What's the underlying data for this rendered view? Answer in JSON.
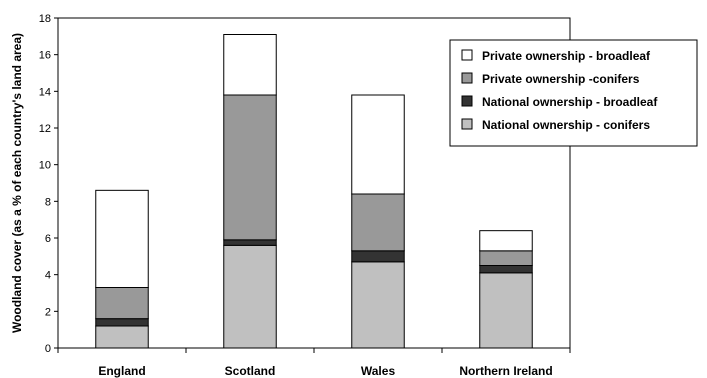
{
  "chart_data": {
    "type": "bar",
    "stacked": true,
    "title": "",
    "xlabel": "",
    "ylabel": "Woodland cover (as a % of each country's land area)",
    "ylim": [
      0,
      18
    ],
    "yticks": [
      0,
      2,
      4,
      6,
      8,
      10,
      12,
      14,
      16,
      18
    ],
    "yticklabels": [
      "0",
      "2",
      "4",
      "6",
      "8",
      "10",
      "12",
      "14",
      "16",
      "18"
    ],
    "grid": false,
    "legend_position": "top-right",
    "categories": [
      "England",
      "Scotland",
      "Wales",
      "Northern Ireland"
    ],
    "series": [
      {
        "name": "National ownership - conifers",
        "color": "#c0c0c0",
        "values": [
          1.2,
          5.6,
          4.7,
          4.1
        ]
      },
      {
        "name": "National ownership - broadleaf",
        "color": "#333333",
        "values": [
          0.4,
          0.3,
          0.6,
          0.4
        ]
      },
      {
        "name": "Private ownership -conifers",
        "color": "#999999",
        "values": [
          1.7,
          7.9,
          3.1,
          0.8
        ]
      },
      {
        "name": "Private ownership - broadleaf",
        "color": "#ffffff",
        "values": [
          5.3,
          3.3,
          5.4,
          1.1
        ]
      }
    ],
    "legend_order": [
      3,
      2,
      1,
      0
    ]
  }
}
